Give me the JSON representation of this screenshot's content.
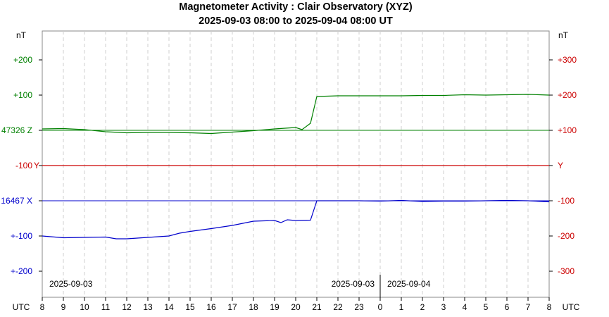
{
  "chart_data": {
    "type": "line",
    "title": "Magnetometer Activity : Clair Observatory (XYZ)",
    "subtitle": "2025-09-03 08:00 to 2025-09-04 08:00 UT",
    "x_axis": {
      "label": "UTC",
      "ticks": [
        "8",
        "9",
        "10",
        "11",
        "12",
        "13",
        "14",
        "15",
        "16",
        "17",
        "18",
        "19",
        "20",
        "21",
        "22",
        "23",
        "0",
        "1",
        "2",
        "3",
        "4",
        "5",
        "6",
        "7",
        "8"
      ],
      "date_labels": [
        "2025-09-03",
        "2025-09-03",
        "2025-09-04"
      ],
      "day_change_at": "2025-09-04 00:00 UT"
    },
    "left_axis": {
      "unit": "nT",
      "labels": [
        {
          "text": "+200",
          "color": "#008000"
        },
        {
          "text": "+100",
          "color": "#008000"
        },
        {
          "text": "47326 Z",
          "color": "#008000"
        },
        {
          "text": "-100",
          "color": "#cc0000",
          "suffix": "Y"
        },
        {
          "text": "16467 X",
          "color": "#0000cc"
        },
        {
          "text": "+-100",
          "color": "#0000cc"
        },
        {
          "text": "+-200",
          "color": "#0000cc"
        }
      ]
    },
    "right_axis": {
      "unit": "nT",
      "labels": [
        "+300",
        "+200",
        "+100",
        "Y",
        "-100",
        "-200",
        "-300"
      ],
      "color": "#cc0000"
    },
    "series": [
      {
        "name": "Z",
        "color": "#008000",
        "baseline": 47326,
        "x": [
          8,
          9,
          10,
          11,
          12,
          13,
          14,
          15,
          16,
          17,
          18,
          19,
          20,
          20.3,
          20.7,
          21,
          22,
          23,
          24,
          25,
          26,
          27,
          28,
          29,
          30,
          31,
          32
        ],
        "y": [
          4,
          5,
          2,
          -4,
          -7,
          -6,
          -6,
          -7,
          -9,
          -5,
          -1,
          4,
          8,
          2,
          20,
          96,
          98,
          98,
          98,
          98,
          99,
          99,
          101,
          100,
          101,
          102,
          100
        ]
      },
      {
        "name": "Y",
        "color": "#cc0000",
        "baseline": 0,
        "x": [
          8,
          32
        ],
        "y": [
          0,
          0
        ]
      },
      {
        "name": "X",
        "color": "#0000cc",
        "baseline": 16467,
        "x": [
          8,
          9,
          10,
          11,
          11.5,
          12,
          13,
          14,
          14.5,
          15,
          16,
          17,
          18,
          19,
          19.3,
          19.6,
          20,
          20.7,
          21,
          22,
          23,
          24,
          25,
          26,
          27,
          28,
          29,
          30,
          31,
          32
        ],
        "y": [
          -100,
          -105,
          -104,
          -103,
          -108,
          -108,
          -104,
          -100,
          -92,
          -87,
          -79,
          -70,
          -58,
          -56,
          -62,
          -54,
          -56,
          -55,
          0,
          0,
          0,
          -1,
          1,
          -2,
          -1,
          -1,
          0,
          1,
          0,
          -3
        ]
      }
    ]
  }
}
